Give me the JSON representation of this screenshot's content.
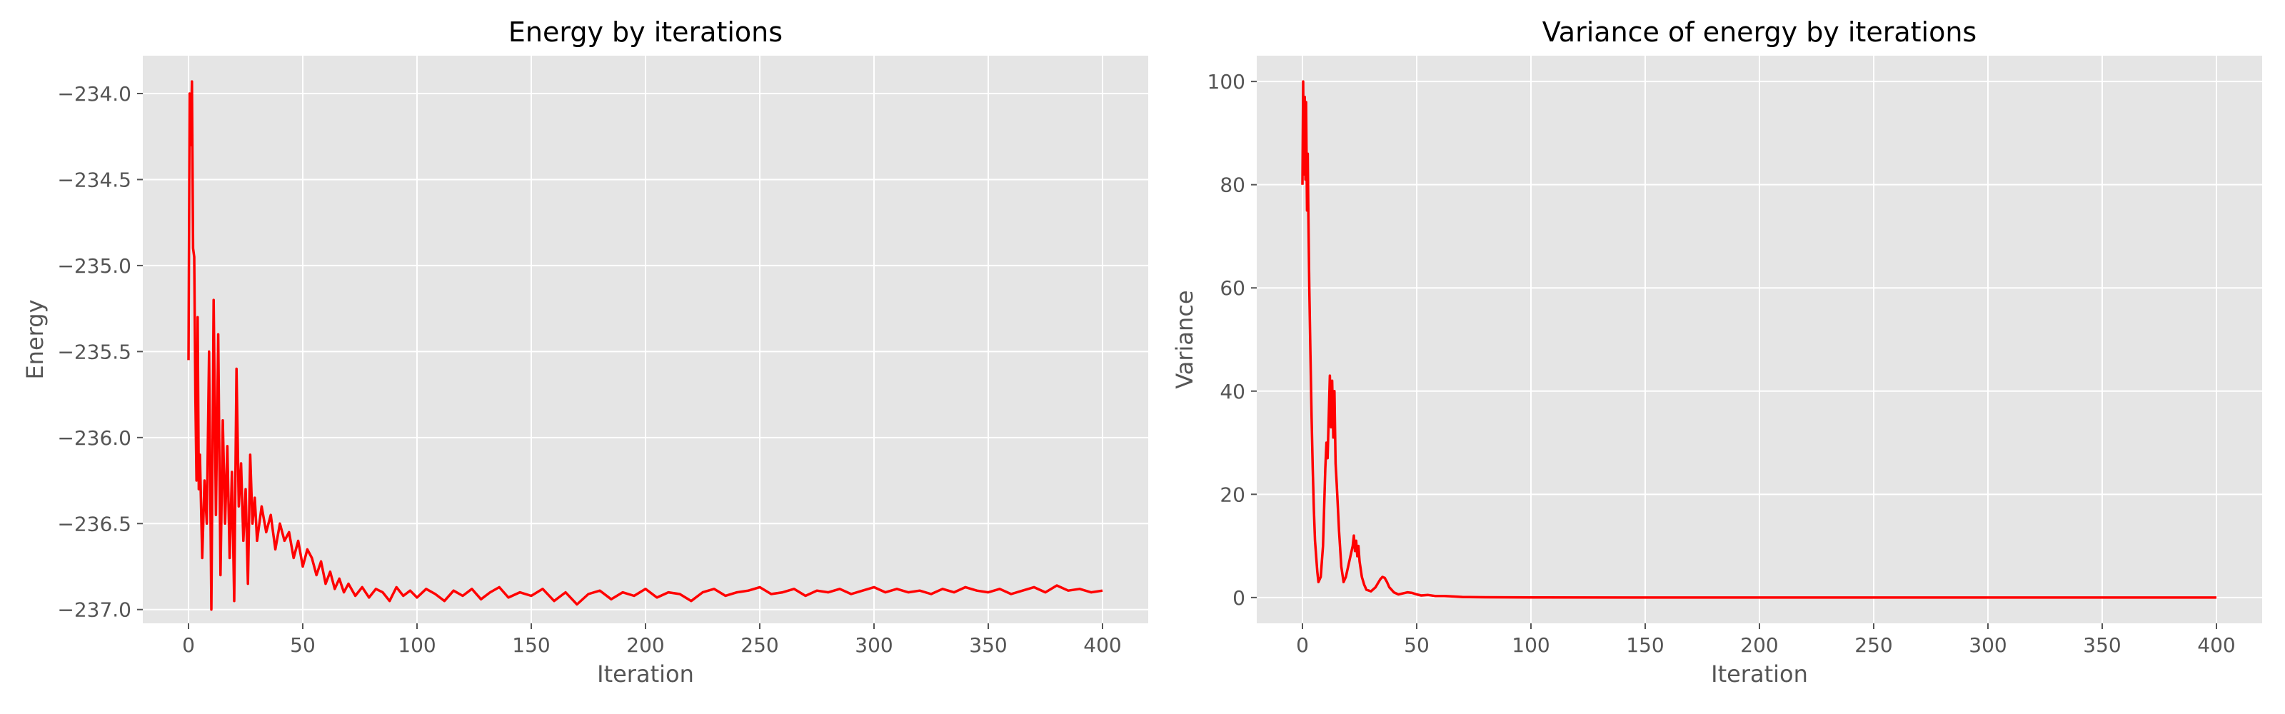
{
  "colors": {
    "figure_background": "#ffffff",
    "axes_background": "#e5e5e5",
    "grid": "#ffffff",
    "line": "#ff0000",
    "tick_label": "#555555",
    "axis_label": "#555555",
    "title": "#000000"
  },
  "chart_data": [
    {
      "type": "line",
      "title": "Energy by iterations",
      "xlabel": "Iteration",
      "ylabel": "Energy",
      "xlim": [
        -20,
        420
      ],
      "ylim": [
        -237.08,
        -233.78
      ],
      "xticks": [
        0,
        50,
        100,
        150,
        200,
        250,
        300,
        350,
        400
      ],
      "xtick_labels": [
        "0",
        "50",
        "100",
        "150",
        "200",
        "250",
        "300",
        "350",
        "400"
      ],
      "yticks": [
        -234.0,
        -234.5,
        -235.0,
        -235.5,
        -236.0,
        -236.5,
        -237.0
      ],
      "ytick_labels": [
        "−234.0",
        "−234.5",
        "−235.0",
        "−235.5",
        "−236.0",
        "−236.5",
        "−237.0"
      ],
      "grid": true,
      "series": [
        {
          "color": "#ff0000",
          "x": [
            0,
            0.5,
            1,
            1.5,
            2,
            2.5,
            3,
            3.5,
            4,
            4.5,
            5,
            6,
            7,
            8,
            9,
            10,
            11,
            12,
            13,
            14,
            15,
            16,
            17,
            18,
            19,
            20,
            21,
            22,
            23,
            24,
            25,
            26,
            27,
            28,
            29,
            30,
            32,
            34,
            36,
            38,
            40,
            42,
            44,
            46,
            48,
            50,
            52,
            54,
            56,
            58,
            60,
            62,
            64,
            66,
            68,
            70,
            73,
            76,
            79,
            82,
            85,
            88,
            91,
            94,
            97,
            100,
            104,
            108,
            112,
            116,
            120,
            124,
            128,
            132,
            136,
            140,
            145,
            150,
            155,
            160,
            165,
            170,
            175,
            180,
            185,
            190,
            195,
            200,
            205,
            210,
            215,
            220,
            225,
            230,
            235,
            240,
            245,
            250,
            255,
            260,
            265,
            270,
            275,
            280,
            285,
            290,
            295,
            300,
            305,
            310,
            315,
            320,
            325,
            330,
            335,
            340,
            345,
            350,
            355,
            360,
            365,
            370,
            375,
            380,
            385,
            390,
            395,
            400
          ],
          "y": [
            -235.55,
            -234.0,
            -234.3,
            -233.93,
            -234.9,
            -234.95,
            -235.75,
            -236.25,
            -235.3,
            -236.3,
            -236.1,
            -236.7,
            -236.25,
            -236.5,
            -235.5,
            -237.0,
            -235.2,
            -236.45,
            -235.4,
            -236.8,
            -235.9,
            -236.5,
            -236.05,
            -236.7,
            -236.2,
            -236.95,
            -235.6,
            -236.4,
            -236.15,
            -236.6,
            -236.3,
            -236.85,
            -236.1,
            -236.5,
            -236.35,
            -236.6,
            -236.4,
            -236.55,
            -236.45,
            -236.65,
            -236.5,
            -236.6,
            -236.55,
            -236.7,
            -236.6,
            -236.75,
            -236.65,
            -236.7,
            -236.8,
            -236.72,
            -236.85,
            -236.78,
            -236.88,
            -236.82,
            -236.9,
            -236.85,
            -236.92,
            -236.87,
            -236.93,
            -236.88,
            -236.9,
            -236.95,
            -236.87,
            -236.92,
            -236.89,
            -236.93,
            -236.88,
            -236.91,
            -236.95,
            -236.89,
            -236.92,
            -236.88,
            -236.94,
            -236.9,
            -236.87,
            -236.93,
            -236.9,
            -236.92,
            -236.88,
            -236.95,
            -236.9,
            -236.97,
            -236.91,
            -236.89,
            -236.94,
            -236.9,
            -236.92,
            -236.88,
            -236.93,
            -236.9,
            -236.91,
            -236.95,
            -236.9,
            -236.88,
            -236.92,
            -236.9,
            -236.89,
            -236.87,
            -236.91,
            -236.9,
            -236.88,
            -236.92,
            -236.89,
            -236.9,
            -236.88,
            -236.91,
            -236.89,
            -236.87,
            -236.9,
            -236.88,
            -236.9,
            -236.89,
            -236.91,
            -236.88,
            -236.9,
            -236.87,
            -236.89,
            -236.9,
            -236.88,
            -236.91,
            -236.89,
            -236.87,
            -236.9,
            -236.86,
            -236.89,
            -236.88,
            -236.9,
            -236.89
          ]
        }
      ]
    },
    {
      "type": "line",
      "title": "Variance of energy by iterations",
      "xlabel": "Iteration",
      "ylabel": "Variance",
      "xlim": [
        -20,
        420
      ],
      "ylim": [
        -5,
        105
      ],
      "xticks": [
        0,
        50,
        100,
        150,
        200,
        250,
        300,
        350,
        400
      ],
      "xtick_labels": [
        "0",
        "50",
        "100",
        "150",
        "200",
        "250",
        "300",
        "350",
        "400"
      ],
      "yticks": [
        0,
        20,
        40,
        60,
        80,
        100
      ],
      "ytick_labels": [
        "0",
        "20",
        "40",
        "60",
        "80",
        "100"
      ],
      "grid": true,
      "series": [
        {
          "color": "#ff0000",
          "x": [
            0,
            0.3,
            0.6,
            1,
            1.3,
            1.6,
            2,
            2.3,
            2.6,
            3,
            3.5,
            4,
            4.5,
            5,
            5.5,
            6,
            6.5,
            7,
            8,
            9,
            10,
            10.5,
            11,
            11.5,
            12,
            12.5,
            13,
            13.5,
            14,
            14.5,
            15,
            16,
            17,
            18,
            19,
            20,
            21,
            22,
            22.5,
            23,
            23.5,
            24,
            24.5,
            25,
            26,
            27,
            28,
            30,
            32,
            34,
            35,
            36,
            37,
            38,
            40,
            42,
            44,
            46,
            48,
            50,
            52,
            55,
            58,
            62,
            66,
            70,
            80,
            100,
            150,
            200,
            250,
            300,
            350,
            400
          ],
          "y": [
            80,
            100,
            82,
            97,
            81,
            96,
            75,
            86,
            74,
            60,
            47,
            35,
            25,
            17,
            11,
            8,
            5,
            3,
            4,
            10,
            25,
            30,
            27,
            35,
            43,
            33,
            42,
            31,
            40,
            26,
            22,
            13,
            6,
            3,
            4,
            6,
            8,
            10,
            12,
            9,
            11,
            8,
            10,
            7,
            4,
            2.5,
            1.5,
            1.2,
            2,
            3.5,
            4,
            3.8,
            3,
            2,
            1,
            0.6,
            0.8,
            1,
            0.9,
            0.6,
            0.4,
            0.5,
            0.3,
            0.3,
            0.2,
            0.1,
            0.05,
            0.02,
            0,
            0,
            0,
            0,
            0,
            0
          ]
        }
      ]
    }
  ]
}
